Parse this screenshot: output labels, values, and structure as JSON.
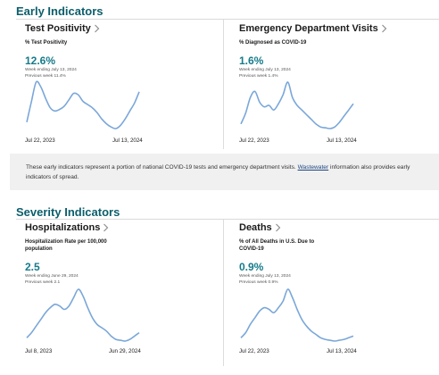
{
  "early": {
    "title": "Early Indicators",
    "cards": [
      {
        "title": "Test Positivity",
        "subtitle": "% Test Positivity",
        "value": "12.6%",
        "note1": "Week ending July 13, 2024",
        "note2": "Previous week 11.4%",
        "start_date": "Jul 22, 2023",
        "end_date": "Jul 13, 2024",
        "trend": [
          5,
          18,
          30,
          27,
          20,
          14,
          12,
          13,
          15,
          19,
          23,
          22,
          18,
          16,
          14,
          11,
          7,
          4,
          2,
          1,
          3,
          7,
          12,
          17,
          24
        ]
      },
      {
        "title": "Emergency Department Visits",
        "subtitle": "% Diagnosed as COVID-19",
        "value": "1.6%",
        "note1": "Week ending July 13, 2024",
        "note2": "Previous week 1.4%",
        "start_date": "Jul 22, 2023",
        "end_date": "Jul 13, 2024",
        "trend": [
          3,
          10,
          20,
          24,
          17,
          14,
          15,
          12,
          16,
          22,
          30,
          20,
          15,
          12,
          9,
          6,
          3,
          1,
          0.5,
          0,
          1,
          4,
          8,
          12,
          16
        ]
      }
    ]
  },
  "callout": {
    "text_before": "These early indicators represent a portion of national COVID-19 tests and emergency department visits.",
    "link": "Wastewater",
    "text_after": "information also provides early indicators of spread."
  },
  "severity": {
    "title": "Severity Indicators",
    "cards": [
      {
        "title": "Hospitalizations",
        "subtitle_line1": "Hospitalization Rate per 100,000",
        "subtitle_line2": "population",
        "value": "2.5",
        "note1": "Week ending June 29, 2024",
        "note2": "Previous week 2.1",
        "start_date": "Jul 8, 2023",
        "end_date": "Jun 29, 2024",
        "trend": [
          2,
          5,
          9,
          13,
          17,
          20,
          22,
          21,
          19,
          21,
          26,
          31,
          27,
          20,
          14,
          10,
          8,
          6,
          3,
          1,
          0.5,
          0,
          1,
          3,
          5
        ]
      },
      {
        "title": "Deaths",
        "subtitle_line1": "% of All Deaths in U.S. Due to",
        "subtitle_line2": "COVID-19",
        "value": "0.9%",
        "note1": "Week ending July 13, 2024",
        "note2": "Previous week 0.9%",
        "start_date": "Jul 22, 2023",
        "end_date": "Jul 13, 2024",
        "trend": [
          2,
          5,
          10,
          14,
          18,
          20,
          19,
          17,
          20,
          24,
          31,
          26,
          19,
          13,
          9,
          6,
          4,
          2,
          1,
          0.5,
          0,
          0.5,
          1,
          2,
          3
        ]
      }
    ]
  },
  "colors": {
    "heading": "#0b5e6b",
    "value": "#167b8a",
    "line": "#7aa7d9",
    "callout_bg": "#f0f0f0",
    "link": "#1a4480"
  }
}
